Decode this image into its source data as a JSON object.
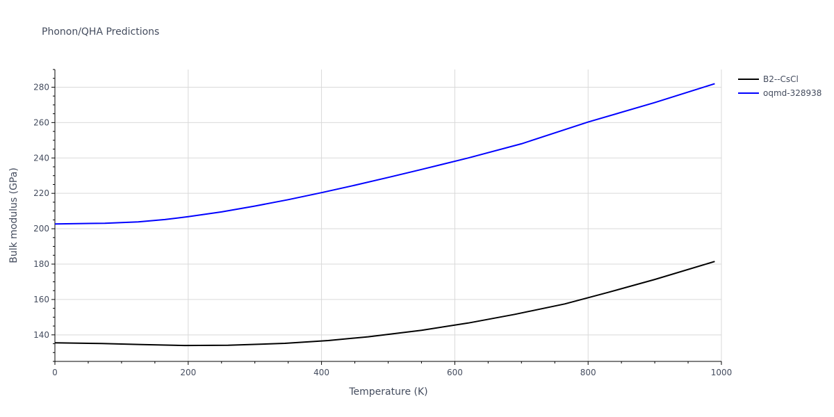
{
  "chart_data": {
    "type": "line",
    "title": "Phonon/QHA Predictions",
    "xlabel": "Temperature (K)",
    "ylabel": "Bulk modulus (GPa)",
    "xlim": [
      0,
      1000
    ],
    "ylim": [
      125,
      290
    ],
    "xticks": [
      0,
      200,
      400,
      600,
      800,
      1000
    ],
    "yticks": [
      140,
      160,
      180,
      200,
      220,
      240,
      260,
      280
    ],
    "grid": true,
    "legend_position": "top-right",
    "series": [
      {
        "name": "B2--CsCl",
        "color": "#000000",
        "x": [
          0,
          70,
          130,
          195,
          260,
          345,
          410,
          470,
          550,
          620,
          690,
          765,
          830,
          900,
          990
        ],
        "y": [
          135.5,
          135.1,
          134.5,
          134.0,
          134.1,
          135.2,
          136.8,
          138.9,
          142.6,
          146.7,
          151.6,
          157.5,
          164.0,
          171.3,
          181.5
        ]
      },
      {
        "name": "oqmd-328938",
        "color": "#0000ff",
        "x": [
          0,
          75,
          125,
          165,
          200,
          250,
          300,
          350,
          400,
          450,
          500,
          550,
          620,
          700,
          800,
          900,
          990
        ],
        "y": [
          202.7,
          203.1,
          203.9,
          205.2,
          206.8,
          209.5,
          212.8,
          216.4,
          220.4,
          224.6,
          229.0,
          233.5,
          240.0,
          248.0,
          260.3,
          271.3,
          282.0
        ]
      }
    ]
  }
}
